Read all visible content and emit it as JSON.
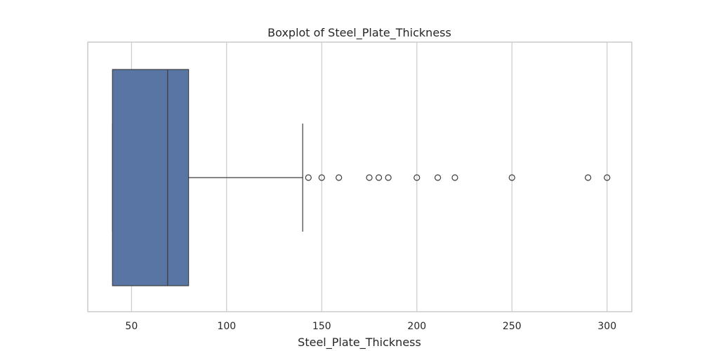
{
  "chart_data": {
    "type": "boxplot",
    "orientation": "horizontal",
    "title": "Boxplot of Steel_Plate_Thickness",
    "xlabel": "Steel_Plate_Thickness",
    "ylabel": "",
    "xlim": [
      27,
      313
    ],
    "xticks": [
      50,
      100,
      150,
      200,
      250,
      300
    ],
    "grid": true,
    "box": {
      "whisker_low": 40,
      "q1": 40,
      "median": 69,
      "q3": 80,
      "whisker_high": 140,
      "color": "#5875a4"
    },
    "outliers": [
      143,
      150,
      159,
      175,
      180,
      185,
      200,
      211,
      220,
      250,
      290,
      300
    ]
  }
}
